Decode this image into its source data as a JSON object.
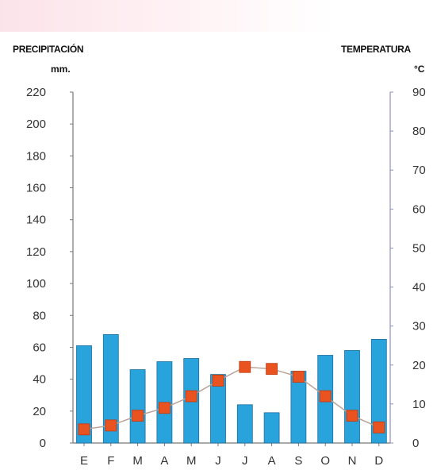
{
  "chart_data": {
    "type": "bar",
    "left_axis": {
      "title": "PRECIPITACIÓN",
      "unit": "mm.",
      "ylim": [
        0,
        220
      ],
      "ticks": [
        0,
        20,
        40,
        60,
        80,
        100,
        120,
        140,
        160,
        180,
        200,
        220
      ]
    },
    "right_axis": {
      "title": "TEMPERATURA",
      "unit": "°C",
      "ylim": [
        0,
        90
      ],
      "ticks": [
        0,
        10,
        20,
        30,
        40,
        50,
        60,
        70,
        80,
        90
      ]
    },
    "categories": [
      "E",
      "F",
      "M",
      "A",
      "M",
      "J",
      "J",
      "A",
      "S",
      "O",
      "N",
      "D"
    ],
    "series": [
      {
        "type": "bar",
        "axis": "left",
        "color": "#29a3dc",
        "values": [
          61,
          68,
          46,
          51,
          53,
          43,
          24,
          19,
          45,
          55,
          58,
          65
        ]
      },
      {
        "type": "line",
        "axis": "right",
        "color": "#e8531f",
        "line_color": "#b7a39a",
        "values": [
          3.5,
          4.5,
          7,
          9,
          12,
          16,
          19.5,
          19,
          17,
          12,
          7,
          4
        ]
      }
    ],
    "grid": false
  }
}
